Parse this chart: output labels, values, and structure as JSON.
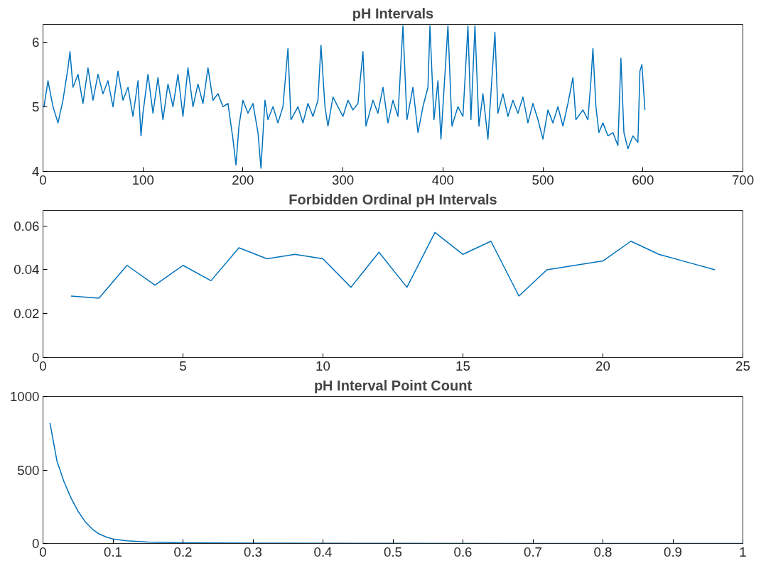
{
  "chart_data": [
    {
      "type": "line",
      "title": "pH Intervals",
      "xlim": [
        0,
        700
      ],
      "ylim": [
        4,
        6.27
      ],
      "xticks": [
        0,
        100,
        200,
        300,
        400,
        500,
        600,
        700
      ],
      "yticks": [
        4,
        5,
        6
      ],
      "grid": false,
      "x": [
        1,
        5,
        10,
        15,
        20,
        25,
        27,
        30,
        35,
        40,
        45,
        50,
        55,
        60,
        65,
        70,
        75,
        80,
        85,
        90,
        95,
        98,
        100,
        105,
        110,
        115,
        120,
        125,
        130,
        135,
        140,
        145,
        150,
        155,
        160,
        165,
        170,
        175,
        180,
        185,
        190,
        193,
        196,
        200,
        205,
        210,
        215,
        218,
        222,
        225,
        230,
        235,
        240,
        245,
        248,
        255,
        260,
        265,
        270,
        275,
        278,
        282,
        285,
        290,
        295,
        300,
        305,
        310,
        315,
        320,
        323,
        330,
        335,
        340,
        345,
        350,
        355,
        360,
        364,
        370,
        375,
        380,
        385,
        387,
        391,
        395,
        398,
        405,
        409,
        415,
        420,
        425,
        428,
        432,
        436,
        440,
        445,
        452,
        455,
        460,
        465,
        470,
        475,
        480,
        485,
        490,
        495,
        500,
        505,
        510,
        515,
        520,
        525,
        530,
        533,
        540,
        545,
        548,
        550,
        553,
        556,
        560,
        565,
        570,
        575,
        578,
        581,
        585,
        590,
        595,
        597,
        599,
        602
      ],
      "series": [
        {
          "color": "#0072bd",
          "values": [
            5.0,
            5.4,
            5.0,
            4.75,
            5.1,
            5.6,
            5.85,
            5.3,
            5.5,
            5.05,
            5.6,
            5.1,
            5.5,
            5.2,
            5.4,
            5.0,
            5.55,
            5.1,
            5.3,
            4.85,
            5.4,
            4.55,
            4.9,
            5.5,
            4.9,
            5.45,
            4.8,
            5.35,
            5.0,
            5.5,
            4.85,
            5.6,
            5.0,
            5.35,
            5.05,
            5.6,
            5.1,
            5.2,
            5.0,
            5.05,
            4.5,
            4.1,
            4.7,
            5.1,
            4.9,
            5.05,
            4.6,
            4.05,
            5.1,
            4.8,
            5.0,
            4.75,
            5.0,
            5.9,
            4.8,
            5.0,
            4.75,
            5.05,
            4.85,
            5.1,
            5.95,
            5.0,
            4.7,
            5.15,
            5.0,
            4.85,
            5.1,
            4.95,
            5.05,
            5.85,
            4.7,
            5.1,
            4.9,
            5.3,
            4.75,
            5.1,
            4.85,
            6.25,
            4.8,
            5.3,
            4.6,
            5.0,
            5.3,
            6.25,
            4.8,
            5.4,
            4.5,
            6.25,
            4.7,
            5.0,
            4.85,
            6.25,
            4.8,
            6.25,
            4.7,
            5.2,
            4.5,
            6.15,
            4.9,
            5.2,
            4.85,
            5.1,
            4.9,
            5.15,
            4.75,
            5.05,
            4.8,
            4.5,
            4.95,
            4.75,
            5.0,
            4.7,
            5.05,
            5.45,
            4.8,
            4.95,
            4.8,
            5.4,
            5.9,
            5.0,
            4.6,
            4.75,
            4.55,
            4.6,
            4.4,
            5.75,
            4.6,
            4.35,
            4.55,
            4.45,
            5.55,
            5.65,
            4.95
          ]
        }
      ]
    },
    {
      "type": "line",
      "title": "Forbidden Ordinal pH Intervals",
      "xlim": [
        0,
        25
      ],
      "ylim": [
        0,
        0.067
      ],
      "xticks": [
        0,
        5,
        10,
        15,
        20,
        25
      ],
      "yticks": [
        0,
        0.02,
        0.04,
        0.06
      ],
      "grid": false,
      "x": [
        1,
        2,
        3,
        4,
        5,
        6,
        7,
        8,
        9,
        10,
        11,
        12,
        13,
        14,
        15,
        16,
        17,
        18,
        19,
        20,
        21,
        22,
        23,
        24
      ],
      "series": [
        {
          "color": "#0072bd",
          "values": [
            0.028,
            0.027,
            0.042,
            0.033,
            0.042,
            0.035,
            0.05,
            0.045,
            0.047,
            0.045,
            0.032,
            0.048,
            0.032,
            0.057,
            0.047,
            0.053,
            0.028,
            0.04,
            0.042,
            0.044,
            0.053,
            0.047,
            0.0435,
            0.04
          ]
        }
      ]
    },
    {
      "type": "line",
      "title": "pH Interval Point Count",
      "xlim": [
        0,
        1
      ],
      "ylim": [
        0,
        1000
      ],
      "xticks": [
        0,
        0.1,
        0.2,
        0.3,
        0.4,
        0.5,
        0.6,
        0.7,
        0.8,
        0.9,
        1
      ],
      "yticks": [
        0,
        500,
        1000
      ],
      "grid": false,
      "x": [
        0.01,
        0.02,
        0.03,
        0.04,
        0.05,
        0.06,
        0.07,
        0.08,
        0.09,
        0.1,
        0.12,
        0.15,
        0.2,
        0.3,
        0.5,
        0.7,
        1
      ],
      "series": [
        {
          "color": "#0072bd",
          "values": [
            820,
            560,
            420,
            310,
            220,
            150,
            100,
            65,
            45,
            30,
            18,
            10,
            5,
            2,
            1,
            0,
            0
          ]
        }
      ]
    }
  ]
}
